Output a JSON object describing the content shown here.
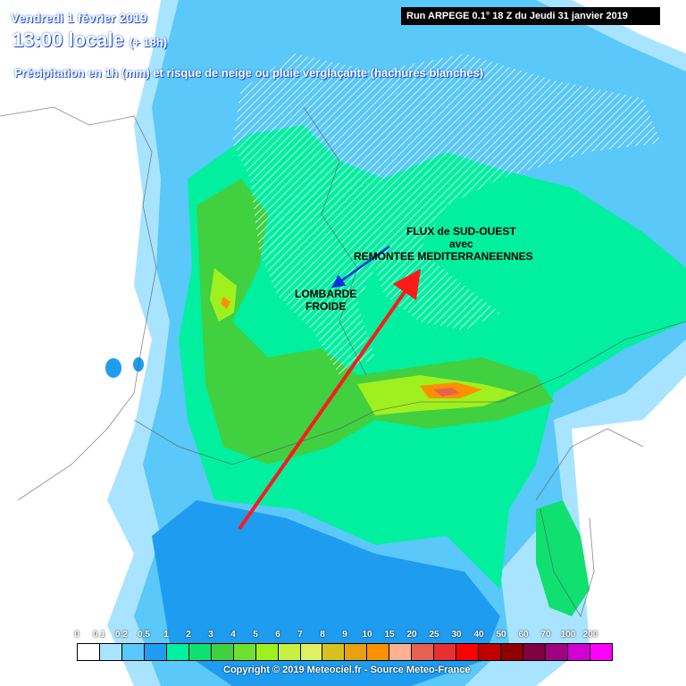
{
  "header": {
    "date": "Vendredi 1 février 2019",
    "time": "13:00 locale",
    "lead": "(+ 18h)",
    "subtitle": "Précipitation en 1h (mm) et risque de neige ou pluie verglaçante (hachures blanches)",
    "run": "Run ARPEGE 0.1° 18 Z du Jeudi 31 janvier 2019"
  },
  "annotations": {
    "flux_line1": "FLUX de SUD-OUEST",
    "flux_line2": "avec",
    "flux_line3": "REMONTEE MEDITERRANEENNES",
    "lombarde_line1": "LOMBARDE",
    "lombarde_line2": "FROIDE",
    "red_arrow_color": "#ff1a1a",
    "blue_arrow_color": "#0a2fe0"
  },
  "legend": {
    "labels": [
      "0",
      "0.1",
      "0.2",
      "0.5",
      "1",
      "2",
      "3",
      "4",
      "5",
      "6",
      "7",
      "8",
      "9",
      "10",
      "15",
      "20",
      "25",
      "30",
      "40",
      "50",
      "60",
      "70",
      "100",
      "200"
    ],
    "colors": [
      "#ffffff",
      "#a8e4ff",
      "#5ac8f8",
      "#1e9cf0",
      "#00f0a0",
      "#10e070",
      "#40d040",
      "#70e030",
      "#a0f020",
      "#c8f040",
      "#e0f060",
      "#d8c020",
      "#e8a010",
      "#ff9000",
      "#ffb090",
      "#e86050",
      "#e83030",
      "#ff0000",
      "#c00000",
      "#900000",
      "#800040",
      "#a00080",
      "#d000d0",
      "#ff00ff"
    ]
  },
  "copyright": "Copyright © 2019 Meteociel.fr - Source Meteo-France"
}
